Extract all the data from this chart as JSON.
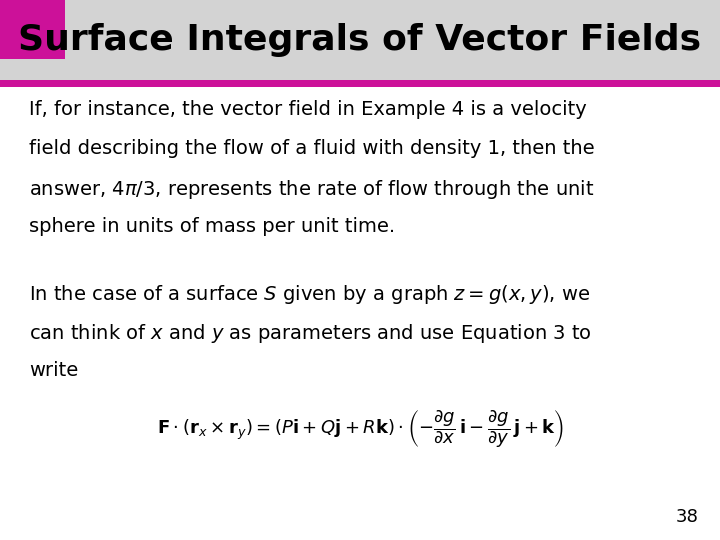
{
  "title": "Surface Integrals of Vector Fields",
  "title_color": "#000000",
  "title_bg_color": "#d3d3d3",
  "title_bar_color": "#cc1199",
  "title_square_color": "#cc1199",
  "body_bg_color": "#ffffff",
  "para1_line1": "If, for instance, the vector field in Example 4 is a velocity",
  "para1_line2": "field describing the flow of a fluid with density 1, then the",
  "para1_line3": "answer, $4\\pi/3$, represents the rate of flow through the unit",
  "para1_line4": "sphere in units of mass per unit time.",
  "para2_line1": "In the case of a surface $S$ given by a graph $z = g(x, y)$, we",
  "para2_line2": "can think of $x$ and $y$ as parameters and use Equation 3 to",
  "para2_line3": "write",
  "formula": "$\\mathbf{F} \\cdot (\\mathbf{r}_x \\times \\mathbf{r}_y) = (P\\mathbf{i} + Q\\mathbf{j} + R\\mathbf{k}) \\cdot \\left(-\\dfrac{\\partial g}{\\partial x}\\,\\mathbf{i} - \\dfrac{\\partial g}{\\partial y}\\,\\mathbf{j} + \\mathbf{k}\\right)$",
  "page_number": "38",
  "font_size_title": 26,
  "font_size_body": 14,
  "font_size_formula": 13,
  "font_size_page": 13
}
